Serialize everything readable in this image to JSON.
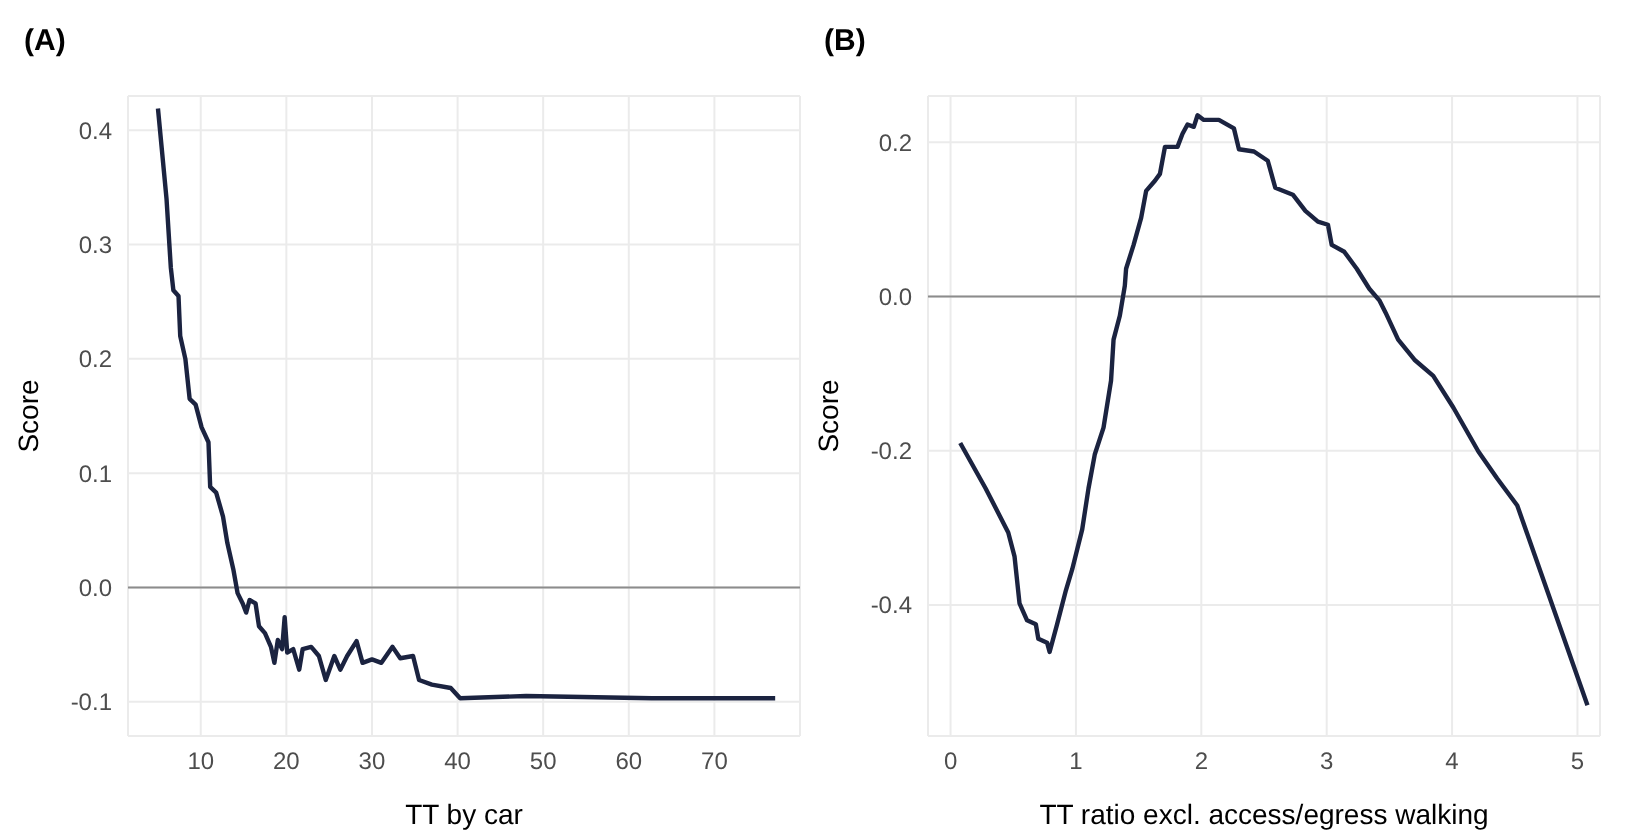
{
  "chart_data": [
    {
      "type": "line",
      "title": "(A)",
      "xlabel": "TT by car",
      "ylabel": "Score",
      "xlim": [
        1.5,
        80
      ],
      "xticks": [
        10,
        20,
        30,
        40,
        50,
        60,
        70
      ],
      "ylim": [
        -0.13,
        0.43
      ],
      "yticks": [
        -0.1,
        {
          "value": 0,
          "label": "0.0"
        },
        0.1,
        0.2,
        0.3,
        0.4
      ],
      "grid": true,
      "legend": false,
      "marker": "none",
      "line_style": "solid",
      "ref_lines": [
        {
          "axis": "y",
          "value": 0,
          "color": "#8c8c8c"
        }
      ],
      "series": [
        {
          "color": "#1b2340",
          "x": [
            5.0,
            6.0,
            6.5,
            6.8,
            7.4,
            7.6,
            8.2,
            8.7,
            9.4,
            10.1,
            10.9,
            11.1,
            11.8,
            12.6,
            13.1,
            13.8,
            14.3,
            14.9,
            15.3,
            15.7,
            16.4,
            16.8,
            17.5,
            18.2,
            18.6,
            19.0,
            19.5,
            19.8,
            20.1,
            20.8,
            21.5,
            21.9,
            22.9,
            23.8,
            24.6,
            25.6,
            26.3,
            27.1,
            28.2,
            28.9,
            30.0,
            31.1,
            32.4,
            33.3,
            34.8,
            35.5,
            37.0,
            39.2,
            40.3,
            48.0,
            62.7,
            77.1
          ],
          "values": [
            0.419,
            0.34,
            0.28,
            0.26,
            0.255,
            0.22,
            0.2,
            0.165,
            0.16,
            0.14,
            0.127,
            0.088,
            0.083,
            0.062,
            0.039,
            0.016,
            -0.005,
            -0.014,
            -0.022,
            -0.011,
            -0.014,
            -0.034,
            -0.04,
            -0.052,
            -0.066,
            -0.046,
            -0.054,
            -0.026,
            -0.057,
            -0.054,
            -0.072,
            -0.054,
            -0.052,
            -0.06,
            -0.081,
            -0.06,
            -0.072,
            -0.06,
            -0.047,
            -0.066,
            -0.063,
            -0.066,
            -0.052,
            -0.062,
            -0.06,
            -0.081,
            -0.085,
            -0.088,
            -0.097,
            -0.095,
            -0.097,
            -0.097
          ]
        }
      ]
    },
    {
      "type": "line",
      "title": "(B)",
      "xlabel": "TT ratio excl. access/egress walking",
      "ylabel": "Score",
      "xlim": [
        -0.18,
        5.18
      ],
      "xticks": [
        0,
        1,
        2,
        3,
        4,
        5
      ],
      "ylim": [
        -0.57,
        0.26
      ],
      "yticks": [
        -0.4,
        -0.2,
        {
          "value": 0,
          "label": "0.0"
        },
        0.2
      ],
      "grid": true,
      "legend": false,
      "marker": "none",
      "line_style": "solid",
      "ref_lines": [
        {
          "axis": "y",
          "value": 0,
          "color": "#8c8c8c"
        }
      ],
      "series": [
        {
          "color": "#1b2340",
          "x": [
            0.077,
            0.28,
            0.46,
            0.51,
            0.55,
            0.61,
            0.68,
            0.7,
            0.77,
            0.79,
            0.85,
            0.92,
            0.97,
            1.05,
            1.1,
            1.15,
            1.22,
            1.28,
            1.3,
            1.35,
            1.39,
            1.4,
            1.46,
            1.52,
            1.56,
            1.63,
            1.67,
            1.71,
            1.81,
            1.85,
            1.89,
            1.94,
            1.97,
            2.02,
            2.14,
            2.26,
            2.3,
            2.42,
            2.53,
            2.59,
            2.73,
            2.83,
            2.93,
            3.01,
            3.04,
            3.14,
            3.24,
            3.34,
            3.42,
            3.47,
            3.57,
            3.7,
            3.85,
            4.01,
            4.21,
            4.36,
            4.52,
            5.08
          ],
          "values": [
            -0.19,
            -0.249,
            -0.306,
            -0.337,
            -0.398,
            -0.42,
            -0.425,
            -0.444,
            -0.449,
            -0.461,
            -0.425,
            -0.381,
            -0.354,
            -0.302,
            -0.249,
            -0.205,
            -0.17,
            -0.109,
            -0.056,
            -0.025,
            0.014,
            0.036,
            0.067,
            0.102,
            0.137,
            0.15,
            0.159,
            0.194,
            0.194,
            0.211,
            0.223,
            0.22,
            0.235,
            0.229,
            0.229,
            0.218,
            0.191,
            0.188,
            0.176,
            0.141,
            0.132,
            0.111,
            0.097,
            0.093,
            0.067,
            0.058,
            0.036,
            0.01,
            -0.005,
            -0.021,
            -0.056,
            -0.082,
            -0.103,
            -0.144,
            -0.201,
            -0.236,
            -0.271,
            -0.53
          ]
        }
      ]
    }
  ]
}
